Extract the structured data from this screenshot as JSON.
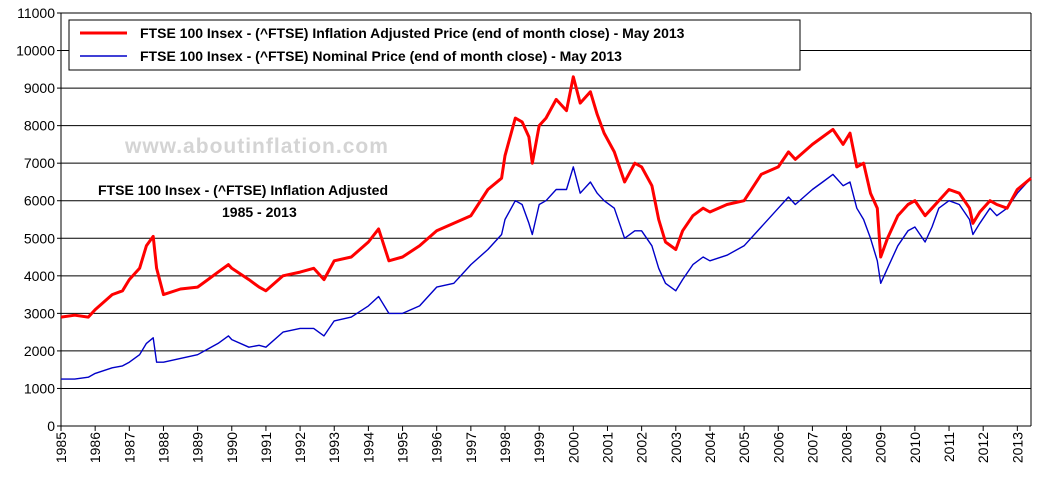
{
  "chart_data": {
    "type": "line",
    "title": "",
    "xlabel": "",
    "ylabel": "",
    "xlim": [
      1985,
      2013.4
    ],
    "ylim": [
      0,
      11000
    ],
    "grid": true,
    "legend_position": "top-left",
    "y_ticks": [
      "0",
      "1000",
      "2000",
      "3000",
      "4000",
      "5000",
      "6000",
      "7000",
      "8000",
      "9000",
      "10000",
      "11000"
    ],
    "x_ticks": [
      "1985",
      "1986",
      "1987",
      "1988",
      "1989",
      "1990",
      "1991",
      "1992",
      "1993",
      "1994",
      "1995",
      "1996",
      "1997",
      "1998",
      "1999",
      "2000",
      "2001",
      "2002",
      "2003",
      "2004",
      "2005",
      "2006",
      "2007",
      "2008",
      "2009",
      "2010",
      "2011",
      "2012",
      "2013"
    ],
    "annotation": [
      "FTSE 100 Insex - (^FTSE)  Inflation Adjusted",
      "1985 - 2013"
    ],
    "watermark": "www.aboutinflation.com",
    "series": [
      {
        "name": "FTSE 100 Insex - (^FTSE)  Inflation Adjusted Price (end of month close) - May 2013",
        "color": "#ff0000",
        "x": [
          1985.0,
          1985.4,
          1985.8,
          1986.0,
          1986.5,
          1986.8,
          1987.0,
          1987.3,
          1987.5,
          1987.7,
          1987.8,
          1988.0,
          1988.5,
          1989.0,
          1989.3,
          1989.6,
          1989.9,
          1990.0,
          1990.5,
          1990.8,
          1991.0,
          1991.5,
          1992.0,
          1992.4,
          1992.7,
          1993.0,
          1993.5,
          1994.0,
          1994.3,
          1994.6,
          1995.0,
          1995.5,
          1996.0,
          1996.5,
          1997.0,
          1997.5,
          1997.9,
          1998.0,
          1998.3,
          1998.5,
          1998.7,
          1998.8,
          1999.0,
          1999.2,
          1999.5,
          1999.8,
          2000.0,
          2000.2,
          2000.5,
          2000.7,
          2000.9,
          2001.2,
          2001.5,
          2001.8,
          2002.0,
          2002.3,
          2002.5,
          2002.7,
          2003.0,
          2003.2,
          2003.5,
          2003.8,
          2004.0,
          2004.5,
          2005.0,
          2005.5,
          2006.0,
          2006.3,
          2006.5,
          2007.0,
          2007.3,
          2007.6,
          2007.9,
          2008.1,
          2008.3,
          2008.5,
          2008.7,
          2008.9,
          2009.0,
          2009.2,
          2009.5,
          2009.8,
          2010.0,
          2010.3,
          2010.5,
          2010.7,
          2011.0,
          2011.3,
          2011.6,
          2011.7,
          2011.9,
          2012.2,
          2012.4,
          2012.7,
          2013.0,
          2013.4
        ],
        "y": [
          2900,
          2950,
          2900,
          3100,
          3500,
          3600,
          3900,
          4200,
          4800,
          5050,
          4200,
          3500,
          3650,
          3700,
          3900,
          4100,
          4300,
          4200,
          3900,
          3700,
          3600,
          4000,
          4100,
          4200,
          3900,
          4400,
          4500,
          4900,
          5250,
          4400,
          4500,
          4800,
          5200,
          5400,
          5600,
          6300,
          6600,
          7200,
          8200,
          8100,
          7700,
          7000,
          8000,
          8200,
          8700,
          8400,
          9300,
          8600,
          8900,
          8300,
          7800,
          7300,
          6500,
          7000,
          6900,
          6400,
          5500,
          4900,
          4700,
          5200,
          5600,
          5800,
          5700,
          5900,
          6000,
          6700,
          6900,
          7300,
          7100,
          7500,
          7700,
          7900,
          7500,
          7800,
          6900,
          7000,
          6200,
          5800,
          4500,
          5000,
          5600,
          5900,
          6000,
          5600,
          5800,
          6000,
          6300,
          6200,
          5800,
          5400,
          5700,
          6000,
          5900,
          5800,
          6300,
          6600
        ]
      },
      {
        "name": "FTSE 100 Insex - (^FTSE)  Nominal Price (end of month close) - May 2013",
        "color": "#0000c8",
        "x": [
          1985.0,
          1985.4,
          1985.8,
          1986.0,
          1986.5,
          1986.8,
          1987.0,
          1987.3,
          1987.5,
          1987.7,
          1987.8,
          1988.0,
          1988.5,
          1989.0,
          1989.3,
          1989.6,
          1989.9,
          1990.0,
          1990.5,
          1990.8,
          1991.0,
          1991.5,
          1992.0,
          1992.4,
          1992.7,
          1993.0,
          1993.5,
          1994.0,
          1994.3,
          1994.6,
          1995.0,
          1995.5,
          1996.0,
          1996.5,
          1997.0,
          1997.5,
          1997.9,
          1998.0,
          1998.3,
          1998.5,
          1998.7,
          1998.8,
          1999.0,
          1999.2,
          1999.5,
          1999.8,
          2000.0,
          2000.2,
          2000.5,
          2000.7,
          2000.9,
          2001.2,
          2001.5,
          2001.8,
          2002.0,
          2002.3,
          2002.5,
          2002.7,
          2003.0,
          2003.2,
          2003.5,
          2003.8,
          2004.0,
          2004.5,
          2005.0,
          2005.5,
          2006.0,
          2006.3,
          2006.5,
          2007.0,
          2007.3,
          2007.6,
          2007.9,
          2008.1,
          2008.3,
          2008.5,
          2008.7,
          2008.9,
          2009.0,
          2009.2,
          2009.5,
          2009.8,
          2010.0,
          2010.3,
          2010.5,
          2010.7,
          2011.0,
          2011.3,
          2011.6,
          2011.7,
          2011.9,
          2012.2,
          2012.4,
          2012.7,
          2013.0,
          2013.4
        ],
        "y": [
          1250,
          1250,
          1300,
          1400,
          1550,
          1600,
          1700,
          1900,
          2200,
          2350,
          1700,
          1700,
          1800,
          1900,
          2050,
          2200,
          2400,
          2300,
          2100,
          2150,
          2100,
          2500,
          2600,
          2600,
          2400,
          2800,
          2900,
          3200,
          3450,
          3000,
          3000,
          3200,
          3700,
          3800,
          4300,
          4700,
          5100,
          5500,
          6000,
          5900,
          5400,
          5100,
          5900,
          6000,
          6300,
          6300,
          6900,
          6200,
          6500,
          6200,
          6000,
          5800,
          5000,
          5200,
          5200,
          4800,
          4200,
          3800,
          3600,
          3900,
          4300,
          4500,
          4400,
          4550,
          4800,
          5300,
          5800,
          6100,
          5900,
          6300,
          6500,
          6700,
          6400,
          6500,
          5800,
          5500,
          5000,
          4400,
          3800,
          4200,
          4800,
          5200,
          5300,
          4900,
          5300,
          5800,
          6000,
          5900,
          5500,
          5100,
          5400,
          5800,
          5600,
          5800,
          6200,
          6600
        ]
      }
    ]
  }
}
